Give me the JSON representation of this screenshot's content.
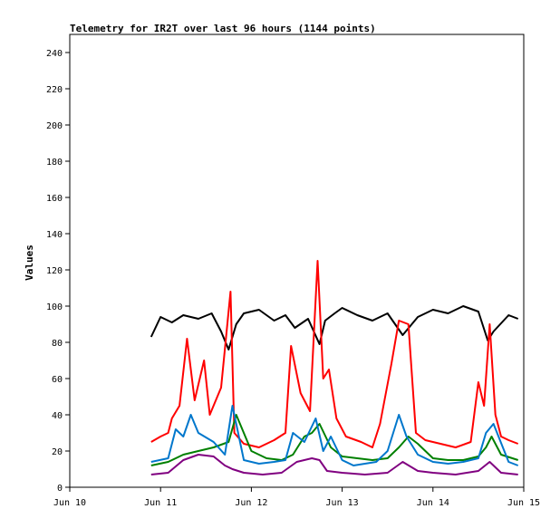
{
  "chart_data": {
    "type": "line",
    "title": "Telemetry for IR2T over last 96 hours (1144 points)",
    "xlabel": "",
    "ylabel": "Values",
    "ylim": [
      0,
      250
    ],
    "yticks": [
      0,
      20,
      40,
      60,
      80,
      100,
      120,
      140,
      160,
      180,
      200,
      220,
      240
    ],
    "xlim": [
      "2024-06-10T00:00",
      "2024-06-15T00:00"
    ],
    "xtick_labels": [
      "Jun 10",
      "Jun 11",
      "Jun 12",
      "Jun 13",
      "Jun 14",
      "Jun 15"
    ],
    "grid": false,
    "legend": "none",
    "series": [
      {
        "color": "#000000",
        "x": [
          "06-10 21:30",
          "06-11 00:00",
          "06-11 03:00",
          "06-11 06:00",
          "06-11 10:00",
          "06-11 13:30",
          "06-11 16:00",
          "06-11 18:00",
          "06-11 20:00",
          "06-11 22:00",
          "06-12 02:00",
          "06-12 06:00",
          "06-12 09:00",
          "06-12 11:30",
          "06-12 15:00",
          "06-12 18:00",
          "06-12 19:30",
          "06-12 22:00",
          "06-13 00:00",
          "06-13 04:00",
          "06-13 08:00",
          "06-13 12:00",
          "06-13 16:00",
          "06-13 20:00",
          "06-14 00:00",
          "06-14 04:00",
          "06-14 08:00",
          "06-14 12:00",
          "06-14 14:30",
          "06-14 16:00",
          "06-14 20:00",
          "06-14 22:30"
        ],
        "y": [
          83,
          94,
          91,
          95,
          93,
          96,
          86,
          76,
          90,
          96,
          98,
          92,
          95,
          88,
          93,
          79,
          92,
          96,
          99,
          95,
          92,
          96,
          84,
          94,
          98,
          96,
          100,
          97,
          81,
          86,
          95,
          93
        ]
      },
      {
        "color": "#ff0000",
        "x": [
          "06-10 21:30",
          "06-11 00:00",
          "06-11 02:00",
          "06-11 03:00",
          "06-11 05:00",
          "06-11 07:00",
          "06-11 09:00",
          "06-11 11:30",
          "06-11 13:00",
          "06-11 16:00",
          "06-11 18:30",
          "06-11 19:30",
          "06-11 22:00",
          "06-12 02:00",
          "06-12 06:00",
          "06-12 09:00",
          "06-12 10:30",
          "06-12 13:00",
          "06-12 15:30",
          "06-12 17:30",
          "06-12 19:00",
          "06-12 20:30",
          "06-12 22:30",
          "06-13 01:00",
          "06-13 05:00",
          "06-13 08:00",
          "06-13 10:00",
          "06-13 13:00",
          "06-13 15:00",
          "06-13 17:30",
          "06-13 19:30",
          "06-13 22:00",
          "06-14 02:00",
          "06-14 06:00",
          "06-14 10:00",
          "06-14 12:00",
          "06-14 13:30",
          "06-14 15:00",
          "06-14 16:30",
          "06-14 18:00",
          "06-14 20:00",
          "06-14 22:30"
        ],
        "y": [
          25,
          28,
          30,
          38,
          45,
          82,
          48,
          70,
          40,
          55,
          108,
          30,
          24,
          22,
          26,
          30,
          78,
          52,
          42,
          125,
          60,
          65,
          38,
          28,
          25,
          22,
          35,
          68,
          92,
          90,
          30,
          26,
          24,
          22,
          25,
          58,
          45,
          90,
          40,
          28,
          26,
          24
        ]
      },
      {
        "color": "#008000",
        "x": [
          "06-10 21:30",
          "06-11 02:00",
          "06-11 06:00",
          "06-11 10:00",
          "06-11 14:00",
          "06-11 18:00",
          "06-11 20:00",
          "06-12 00:00",
          "06-12 04:00",
          "06-12 08:00",
          "06-12 11:00",
          "06-12 14:00",
          "06-12 16:00",
          "06-12 18:00",
          "06-12 21:00",
          "06-13 00:00",
          "06-13 04:00",
          "06-13 08:00",
          "06-13 12:00",
          "06-13 15:00",
          "06-13 17:30",
          "06-13 20:00",
          "06-14 00:00",
          "06-14 04:00",
          "06-14 08:00",
          "06-14 12:00",
          "06-14 14:00",
          "06-14 15:30",
          "06-14 18:00",
          "06-14 22:30"
        ],
        "y": [
          12,
          14,
          18,
          20,
          22,
          25,
          40,
          20,
          16,
          15,
          18,
          28,
          30,
          35,
          22,
          17,
          16,
          15,
          16,
          22,
          28,
          24,
          16,
          15,
          15,
          17,
          22,
          28,
          18,
          15
        ]
      },
      {
        "color": "#0077cc",
        "x": [
          "06-10 21:30",
          "06-11 02:00",
          "06-11 04:00",
          "06-11 06:00",
          "06-11 08:00",
          "06-11 10:00",
          "06-11 14:00",
          "06-11 17:00",
          "06-11 19:00",
          "06-11 22:00",
          "06-12 02:00",
          "06-12 06:00",
          "06-12 09:00",
          "06-12 11:00",
          "06-12 14:00",
          "06-12 17:00",
          "06-12 19:00",
          "06-12 21:00",
          "06-13 00:00",
          "06-13 03:00",
          "06-13 06:00",
          "06-13 09:00",
          "06-13 12:00",
          "06-13 15:00",
          "06-13 17:00",
          "06-13 20:00",
          "06-14 00:00",
          "06-14 04:00",
          "06-14 08:00",
          "06-14 12:00",
          "06-14 14:00",
          "06-14 16:00",
          "06-14 20:00",
          "06-14 22:30"
        ],
        "y": [
          14,
          16,
          32,
          28,
          40,
          30,
          25,
          18,
          45,
          15,
          13,
          14,
          15,
          30,
          25,
          38,
          20,
          28,
          15,
          12,
          13,
          14,
          20,
          40,
          28,
          18,
          14,
          13,
          14,
          16,
          30,
          35,
          14,
          12
        ]
      },
      {
        "color": "#800080",
        "x": [
          "06-10 21:30",
          "06-11 02:00",
          "06-11 06:00",
          "06-11 10:00",
          "06-11 14:00",
          "06-11 17:00",
          "06-11 19:00",
          "06-11 22:00",
          "06-12 03:00",
          "06-12 08:00",
          "06-12 12:00",
          "06-12 16:00",
          "06-12 18:00",
          "06-12 20:00",
          "06-13 00:00",
          "06-13 06:00",
          "06-13 12:00",
          "06-13 16:00",
          "06-13 20:00",
          "06-14 00:00",
          "06-14 06:00",
          "06-14 12:00",
          "06-14 15:00",
          "06-14 18:00",
          "06-14 22:30"
        ],
        "y": [
          7,
          8,
          15,
          18,
          17,
          12,
          10,
          8,
          7,
          8,
          14,
          16,
          15,
          9,
          8,
          7,
          8,
          14,
          9,
          8,
          7,
          9,
          14,
          8,
          7
        ]
      }
    ]
  }
}
